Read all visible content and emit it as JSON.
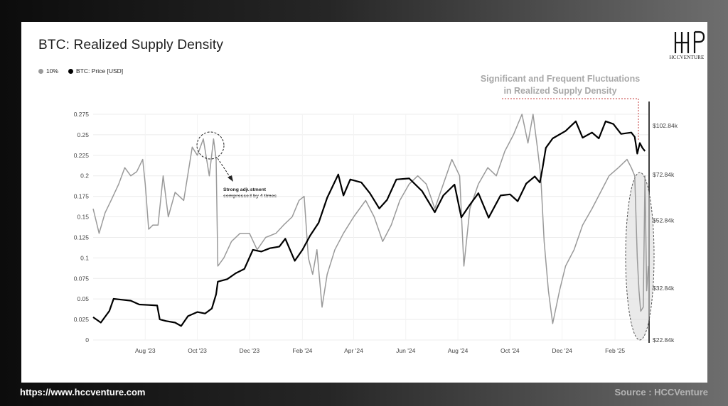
{
  "header": {
    "title": "BTC: Realized Supply Density"
  },
  "logo": {
    "text": "HCCVENTURE"
  },
  "legend": {
    "items": [
      {
        "label": "10%",
        "color": "#9a9a9a"
      },
      {
        "label": "BTC: Price [USD]",
        "color": "#000000"
      }
    ]
  },
  "callout": {
    "line1": "Significant and Frequent Fluctuations",
    "line2": "in Realized Supply Density"
  },
  "annotation": {
    "line1": "Strong adjustment",
    "line2": "compressed by 4 times"
  },
  "footer": {
    "url": "https://www.hccventure.com",
    "source": "Source : HCCVenture"
  },
  "chart_data": {
    "type": "line",
    "title": "BTC: Realized Supply Density",
    "x_ticks": [
      "Aug '23",
      "Oct '23",
      "Dec '23",
      "Feb '24",
      "Apr '24",
      "Jun '24",
      "Aug '24",
      "Oct '24",
      "Dec '24",
      "Feb '25"
    ],
    "x_range": [
      "2023-06-01",
      "2025-03-12"
    ],
    "y_left": {
      "ticks": [
        0,
        0.025,
        0.05,
        0.075,
        0.1,
        0.125,
        0.15,
        0.175,
        0.2,
        0.225,
        0.25,
        0.275
      ],
      "range": [
        0,
        0.275
      ]
    },
    "y_right": {
      "ticks": [
        "$22.84k",
        "$32.84k",
        "$52.84k",
        "$72.84k",
        "$102.84k"
      ],
      "scale": "log"
    },
    "grid": true,
    "legend_position": "top-left",
    "series": [
      {
        "name": "10%",
        "axis": "left",
        "color": "#9a9a9a",
        "points": [
          [
            "2023-06-01",
            0.16
          ],
          [
            "2023-06-08",
            0.13
          ],
          [
            "2023-06-15",
            0.155
          ],
          [
            "2023-06-22",
            0.17
          ],
          [
            "2023-07-01",
            0.19
          ],
          [
            "2023-07-08",
            0.21
          ],
          [
            "2023-07-15",
            0.2
          ],
          [
            "2023-07-22",
            0.205
          ],
          [
            "2023-07-29",
            0.22
          ],
          [
            "2023-08-01",
            0.19
          ],
          [
            "2023-08-05",
            0.135
          ],
          [
            "2023-08-10",
            0.14
          ],
          [
            "2023-08-16",
            0.14
          ],
          [
            "2023-08-22",
            0.2
          ],
          [
            "2023-08-28",
            0.15
          ],
          [
            "2023-09-05",
            0.18
          ],
          [
            "2023-09-15",
            0.17
          ],
          [
            "2023-09-25",
            0.235
          ],
          [
            "2023-10-01",
            0.225
          ],
          [
            "2023-10-08",
            0.245
          ],
          [
            "2023-10-15",
            0.2
          ],
          [
            "2023-10-20",
            0.245
          ],
          [
            "2023-10-23",
            0.22
          ],
          [
            "2023-10-25",
            0.09
          ],
          [
            "2023-11-01",
            0.1
          ],
          [
            "2023-11-10",
            0.12
          ],
          [
            "2023-11-20",
            0.13
          ],
          [
            "2023-12-01",
            0.13
          ],
          [
            "2023-12-10",
            0.11
          ],
          [
            "2023-12-20",
            0.125
          ],
          [
            "2024-01-01",
            0.13
          ],
          [
            "2024-01-10",
            0.14
          ],
          [
            "2024-01-20",
            0.15
          ],
          [
            "2024-01-28",
            0.17
          ],
          [
            "2024-02-03",
            0.175
          ],
          [
            "2024-02-08",
            0.1
          ],
          [
            "2024-02-13",
            0.08
          ],
          [
            "2024-02-18",
            0.11
          ],
          [
            "2024-02-24",
            0.04
          ],
          [
            "2024-03-01",
            0.08
          ],
          [
            "2024-03-10",
            0.11
          ],
          [
            "2024-03-20",
            0.13
          ],
          [
            "2024-04-01",
            0.15
          ],
          [
            "2024-04-15",
            0.17
          ],
          [
            "2024-04-25",
            0.15
          ],
          [
            "2024-05-05",
            0.12
          ],
          [
            "2024-05-15",
            0.14
          ],
          [
            "2024-05-25",
            0.17
          ],
          [
            "2024-06-05",
            0.19
          ],
          [
            "2024-06-15",
            0.2
          ],
          [
            "2024-06-25",
            0.19
          ],
          [
            "2024-07-05",
            0.16
          ],
          [
            "2024-07-15",
            0.19
          ],
          [
            "2024-07-25",
            0.22
          ],
          [
            "2024-08-03",
            0.2
          ],
          [
            "2024-08-08",
            0.09
          ],
          [
            "2024-08-15",
            0.16
          ],
          [
            "2024-08-25",
            0.19
          ],
          [
            "2024-09-05",
            0.21
          ],
          [
            "2024-09-15",
            0.2
          ],
          [
            "2024-09-25",
            0.23
          ],
          [
            "2024-10-05",
            0.25
          ],
          [
            "2024-10-15",
            0.275
          ],
          [
            "2024-10-22",
            0.24
          ],
          [
            "2024-10-28",
            0.275
          ],
          [
            "2024-11-02",
            0.235
          ],
          [
            "2024-11-06",
            0.2
          ],
          [
            "2024-11-10",
            0.12
          ],
          [
            "2024-11-15",
            0.06
          ],
          [
            "2024-11-20",
            0.02
          ],
          [
            "2024-11-28",
            0.06
          ],
          [
            "2024-12-05",
            0.09
          ],
          [
            "2024-12-15",
            0.11
          ],
          [
            "2024-12-25",
            0.14
          ],
          [
            "2025-01-05",
            0.16
          ],
          [
            "2025-01-15",
            0.18
          ],
          [
            "2025-01-25",
            0.2
          ],
          [
            "2025-02-05",
            0.21
          ],
          [
            "2025-02-15",
            0.22
          ],
          [
            "2025-02-20",
            0.21
          ],
          [
            "2025-02-24",
            0.2
          ],
          [
            "2025-02-27",
            0.1
          ],
          [
            "2025-03-01",
            0.06
          ],
          [
            "2025-03-03",
            0.035
          ],
          [
            "2025-03-06",
            0.04
          ],
          [
            "2025-03-08",
            0.2
          ],
          [
            "2025-03-10",
            0.06
          ],
          [
            "2025-03-12",
            0.09
          ]
        ]
      },
      {
        "name": "BTC: Price [USD]",
        "axis": "right",
        "color": "#000000",
        "points": [
          [
            "2023-06-01",
            26800
          ],
          [
            "2023-06-10",
            25800
          ],
          [
            "2023-06-20",
            28000
          ],
          [
            "2023-06-25",
            30500
          ],
          [
            "2023-07-05",
            30300
          ],
          [
            "2023-07-15",
            30100
          ],
          [
            "2023-07-25",
            29300
          ],
          [
            "2023-08-05",
            29200
          ],
          [
            "2023-08-15",
            29100
          ],
          [
            "2023-08-18",
            26400
          ],
          [
            "2023-08-25",
            26100
          ],
          [
            "2023-09-05",
            25800
          ],
          [
            "2023-09-12",
            25200
          ],
          [
            "2023-09-20",
            27000
          ],
          [
            "2023-10-01",
            27800
          ],
          [
            "2023-10-10",
            27500
          ],
          [
            "2023-10-18",
            28500
          ],
          [
            "2023-10-23",
            31500
          ],
          [
            "2023-10-25",
            34400
          ],
          [
            "2023-11-05",
            35000
          ],
          [
            "2023-11-15",
            36500
          ],
          [
            "2023-11-25",
            37600
          ],
          [
            "2023-12-05",
            43000
          ],
          [
            "2023-12-15",
            42500
          ],
          [
            "2023-12-25",
            43500
          ],
          [
            "2024-01-05",
            44000
          ],
          [
            "2024-01-12",
            46500
          ],
          [
            "2024-01-23",
            39800
          ],
          [
            "2024-02-01",
            43000
          ],
          [
            "2024-02-10",
            47500
          ],
          [
            "2024-02-20",
            52000
          ],
          [
            "2024-03-01",
            62000
          ],
          [
            "2024-03-14",
            73000
          ],
          [
            "2024-03-20",
            63000
          ],
          [
            "2024-03-28",
            70500
          ],
          [
            "2024-04-10",
            69000
          ],
          [
            "2024-04-20",
            64000
          ],
          [
            "2024-05-01",
            57500
          ],
          [
            "2024-05-10",
            61000
          ],
          [
            "2024-05-21",
            70500
          ],
          [
            "2024-06-05",
            71000
          ],
          [
            "2024-06-20",
            65000
          ],
          [
            "2024-07-05",
            56000
          ],
          [
            "2024-07-15",
            63000
          ],
          [
            "2024-07-28",
            68000
          ],
          [
            "2024-08-05",
            54000
          ],
          [
            "2024-08-15",
            59000
          ],
          [
            "2024-08-25",
            64000
          ],
          [
            "2024-09-06",
            53900
          ],
          [
            "2024-09-20",
            63000
          ],
          [
            "2024-10-01",
            63500
          ],
          [
            "2024-10-10",
            60500
          ],
          [
            "2024-10-20",
            68500
          ],
          [
            "2024-10-30",
            72000
          ],
          [
            "2024-11-05",
            69000
          ],
          [
            "2024-11-08",
            76000
          ],
          [
            "2024-11-12",
            88000
          ],
          [
            "2024-11-20",
            94000
          ],
          [
            "2024-12-05",
            99000
          ],
          [
            "2024-12-17",
            106000
          ],
          [
            "2024-12-25",
            94500
          ],
          [
            "2025-01-05",
            98000
          ],
          [
            "2025-01-13",
            94000
          ],
          [
            "2025-01-21",
            106000
          ],
          [
            "2025-01-30",
            104000
          ],
          [
            "2025-02-08",
            97000
          ],
          [
            "2025-02-20",
            98000
          ],
          [
            "2025-02-24",
            95000
          ],
          [
            "2025-02-27",
            84500
          ],
          [
            "2025-03-02",
            91000
          ],
          [
            "2025-03-05",
            88000
          ],
          [
            "2025-03-08",
            86000
          ]
        ]
      }
    ]
  }
}
